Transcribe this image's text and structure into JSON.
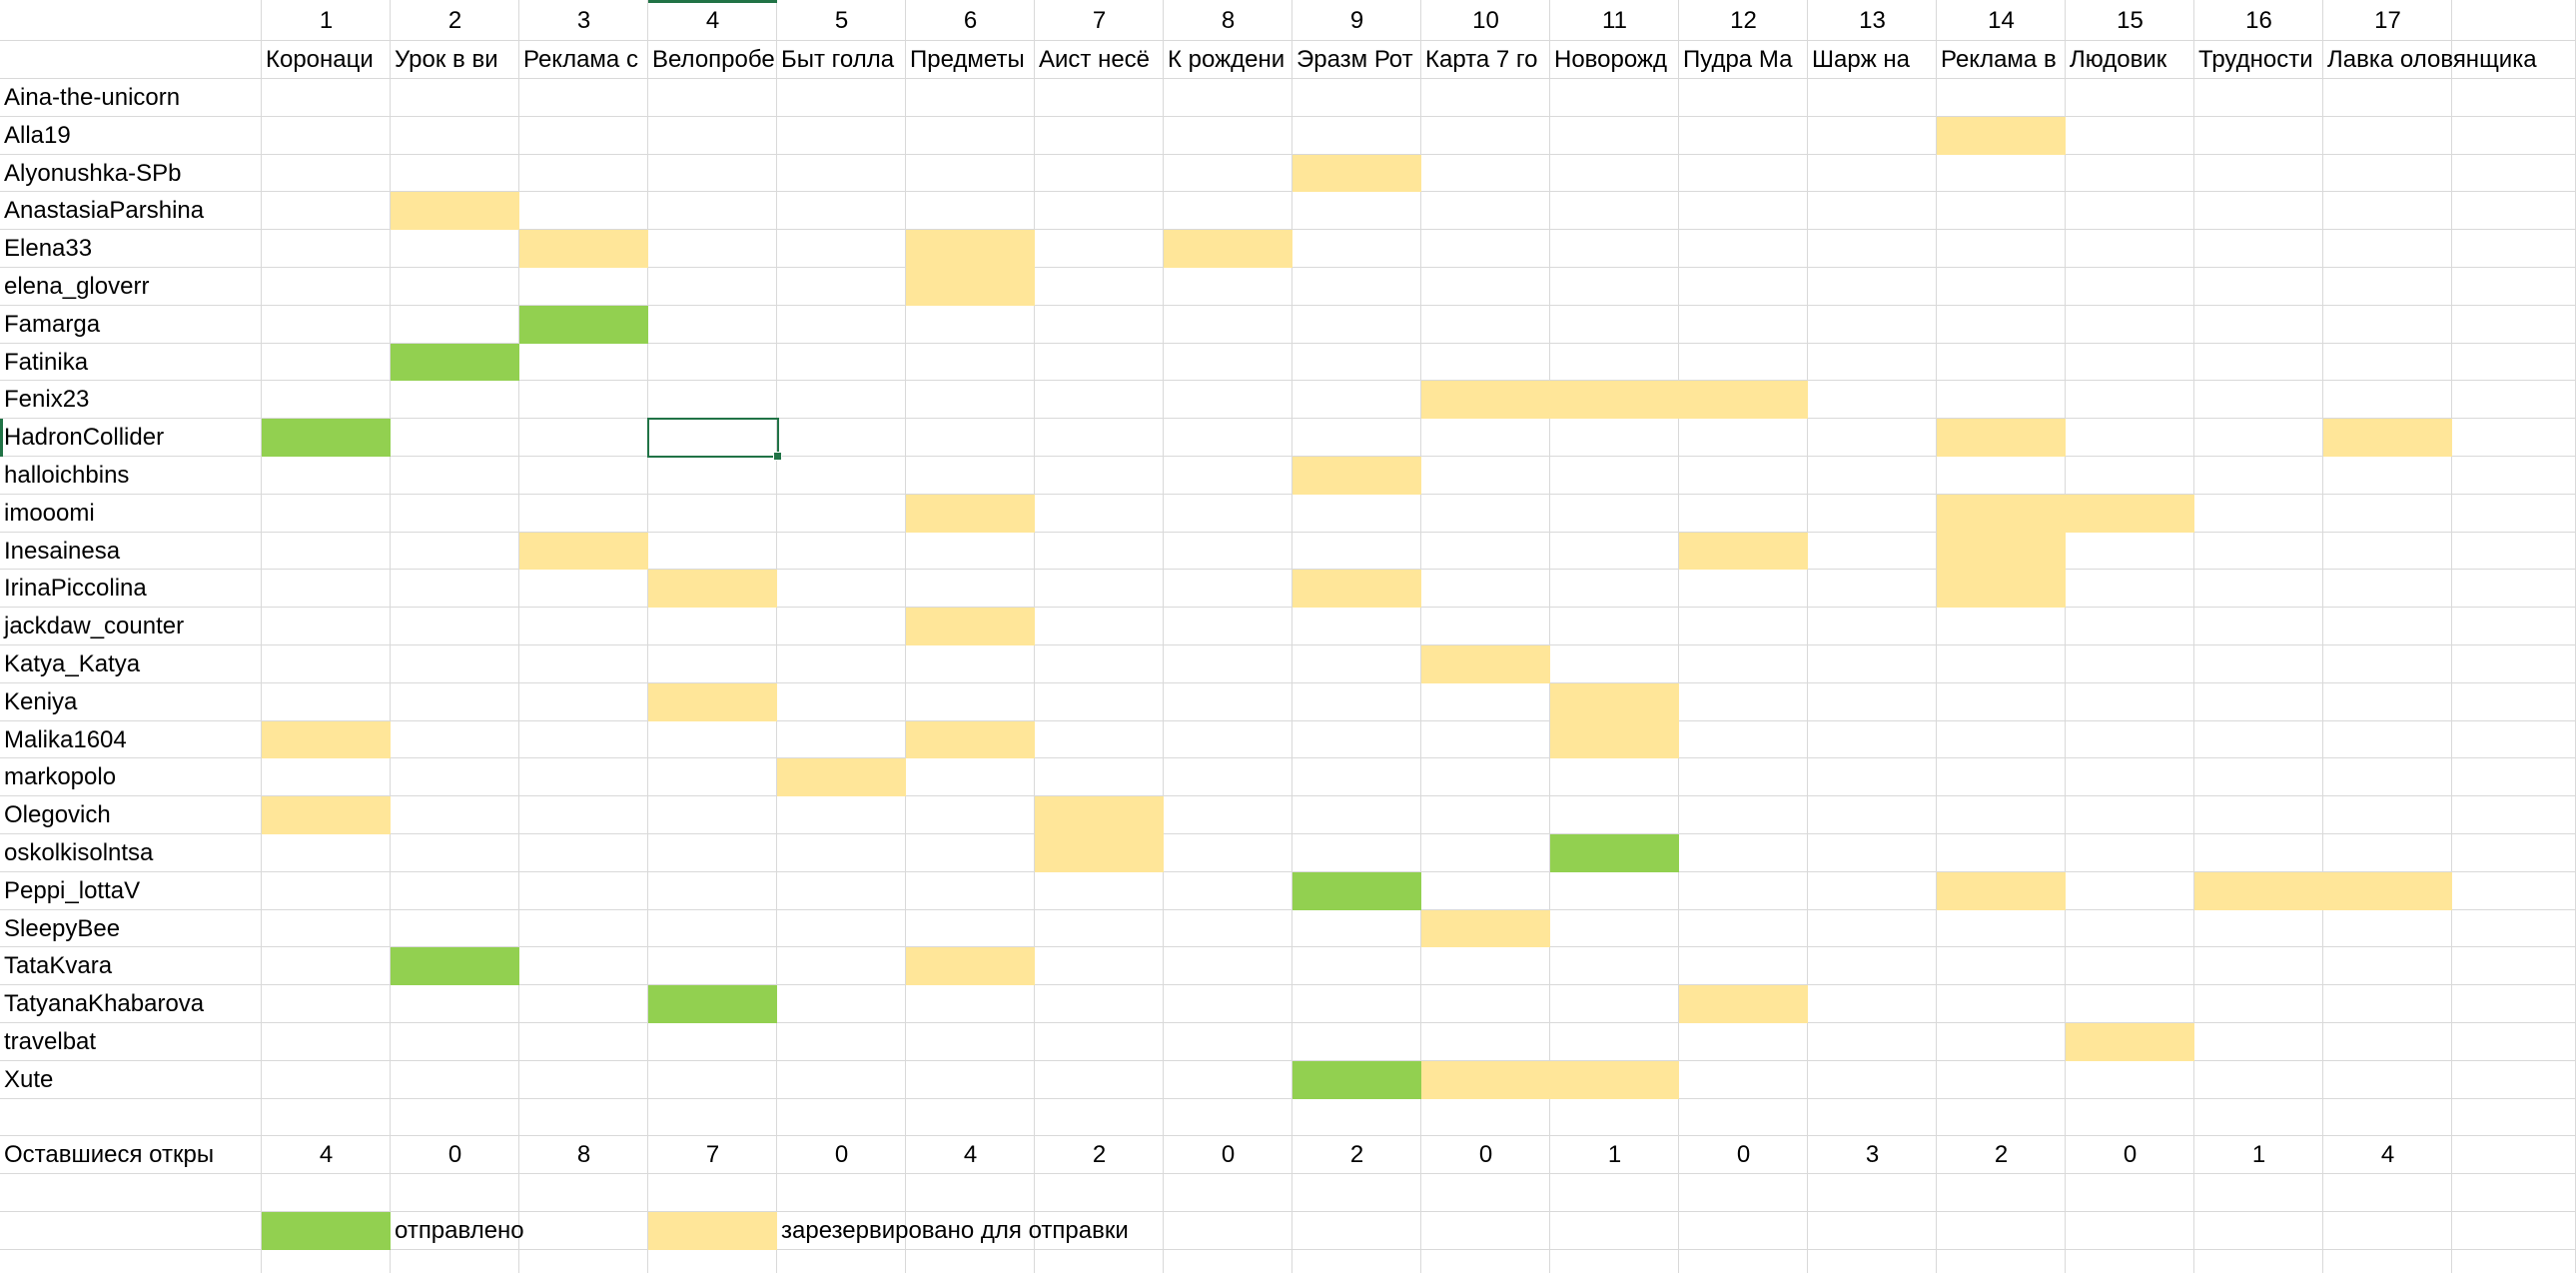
{
  "columns": {
    "numbers": [
      1,
      2,
      3,
      4,
      5,
      6,
      7,
      8,
      9,
      10,
      11,
      12,
      13,
      14,
      15,
      16,
      17
    ],
    "titles": [
      "Коронаци",
      "Урок в ви",
      "Реклама с",
      "Велопробе",
      "Быт голла",
      "Предметы",
      "Аист несё",
      "К рождени",
      "Эразм Рот",
      "Карта 7 го",
      "Новорожд",
      "Пудра Ма",
      "Шарж на",
      "Реклама в",
      "Людовик",
      "Трудности",
      "Лавка оловянщика"
    ]
  },
  "rows": [
    {
      "name": "Aina-the-unicorn",
      "fills": [
        null,
        null,
        null,
        null,
        null,
        null,
        null,
        null,
        null,
        null,
        null,
        null,
        null,
        null,
        null,
        null,
        null
      ]
    },
    {
      "name": "Alla19",
      "fills": [
        null,
        null,
        null,
        null,
        null,
        null,
        null,
        null,
        null,
        null,
        null,
        null,
        null,
        "#ffe699",
        null,
        null,
        null
      ]
    },
    {
      "name": "Alyonushka-SPb",
      "fills": [
        null,
        null,
        null,
        null,
        null,
        null,
        null,
        null,
        "#ffe699",
        null,
        null,
        null,
        null,
        null,
        null,
        null,
        null
      ]
    },
    {
      "name": "AnastasiaParshina",
      "fills": [
        null,
        "#ffe699",
        null,
        null,
        null,
        null,
        null,
        null,
        null,
        null,
        null,
        null,
        null,
        null,
        null,
        null,
        null
      ]
    },
    {
      "name": "Elena33",
      "fills": [
        null,
        null,
        "#ffe699",
        null,
        null,
        "#ffe699",
        null,
        "#ffe699",
        null,
        null,
        null,
        null,
        null,
        null,
        null,
        null,
        null
      ]
    },
    {
      "name": "elena_gloverr",
      "fills": [
        null,
        null,
        null,
        null,
        null,
        "#ffe699",
        null,
        null,
        null,
        null,
        null,
        null,
        null,
        null,
        null,
        null,
        null
      ]
    },
    {
      "name": "Famarga",
      "fills": [
        null,
        null,
        "#92d050",
        null,
        null,
        null,
        null,
        null,
        null,
        null,
        null,
        null,
        null,
        null,
        null,
        null,
        null
      ]
    },
    {
      "name": "Fatinika",
      "fills": [
        null,
        "#92d050",
        null,
        null,
        null,
        null,
        null,
        null,
        null,
        null,
        null,
        null,
        null,
        null,
        null,
        null,
        null
      ]
    },
    {
      "name": "Fenix23",
      "fills": [
        null,
        null,
        null,
        null,
        null,
        null,
        null,
        null,
        null,
        "#ffe699",
        "#ffe699",
        "#ffe699",
        null,
        null,
        null,
        null,
        null
      ]
    },
    {
      "name": "HadronCollider",
      "fills": [
        "#92d050",
        null,
        null,
        null,
        null,
        null,
        null,
        null,
        null,
        null,
        null,
        null,
        null,
        "#ffe699",
        null,
        null,
        "#ffe699"
      ]
    },
    {
      "name": "halloichbins",
      "fills": [
        null,
        null,
        null,
        null,
        null,
        null,
        null,
        null,
        "#ffe699",
        null,
        null,
        null,
        null,
        null,
        null,
        null,
        null
      ]
    },
    {
      "name": "imooomi",
      "fills": [
        null,
        null,
        null,
        null,
        null,
        "#ffe699",
        null,
        null,
        null,
        null,
        null,
        null,
        null,
        "#ffe699",
        "#ffe699",
        null,
        null
      ]
    },
    {
      "name": "Inesainesa",
      "fills": [
        null,
        null,
        "#ffe699",
        null,
        null,
        null,
        null,
        null,
        null,
        null,
        null,
        "#ffe699",
        null,
        "#ffe699",
        null,
        null,
        null
      ]
    },
    {
      "name": "IrinaPiccolina",
      "fills": [
        null,
        null,
        null,
        "#ffe699",
        null,
        null,
        null,
        null,
        "#ffe699",
        null,
        null,
        null,
        null,
        "#ffe699",
        null,
        null,
        null
      ]
    },
    {
      "name": "jackdaw_counter",
      "fills": [
        null,
        null,
        null,
        null,
        null,
        "#ffe699",
        null,
        null,
        null,
        null,
        null,
        null,
        null,
        null,
        null,
        null,
        null
      ]
    },
    {
      "name": "Katya_Katya",
      "fills": [
        null,
        null,
        null,
        null,
        null,
        null,
        null,
        null,
        null,
        "#ffe699",
        null,
        null,
        null,
        null,
        null,
        null,
        null
      ]
    },
    {
      "name": "Keniya",
      "fills": [
        null,
        null,
        null,
        "#ffe699",
        null,
        null,
        null,
        null,
        null,
        null,
        "#ffe699",
        null,
        null,
        null,
        null,
        null,
        null
      ]
    },
    {
      "name": "Malika1604",
      "fills": [
        "#ffe699",
        null,
        null,
        null,
        null,
        "#ffe699",
        null,
        null,
        null,
        null,
        "#ffe699",
        null,
        null,
        null,
        null,
        null,
        null
      ]
    },
    {
      "name": "markopolo",
      "fills": [
        null,
        null,
        null,
        null,
        "#ffe699",
        null,
        null,
        null,
        null,
        null,
        null,
        null,
        null,
        null,
        null,
        null,
        null
      ]
    },
    {
      "name": "Olegovich",
      "fills": [
        "#ffe699",
        null,
        null,
        null,
        null,
        null,
        "#ffe699",
        null,
        null,
        null,
        null,
        null,
        null,
        null,
        null,
        null,
        null
      ]
    },
    {
      "name": "oskolkisolntsa",
      "fills": [
        null,
        null,
        null,
        null,
        null,
        null,
        "#ffe699",
        null,
        null,
        null,
        "#92d050",
        null,
        null,
        null,
        null,
        null,
        null
      ]
    },
    {
      "name": "Peppi_lottaV",
      "fills": [
        null,
        null,
        null,
        null,
        null,
        null,
        null,
        null,
        "#92d050",
        null,
        null,
        null,
        null,
        "#ffe699",
        null,
        "#ffe699",
        "#ffe699"
      ]
    },
    {
      "name": "SleepyBee",
      "fills": [
        null,
        null,
        null,
        null,
        null,
        null,
        null,
        null,
        null,
        "#ffe699",
        null,
        null,
        null,
        null,
        null,
        null,
        null
      ]
    },
    {
      "name": "TataKvara",
      "fills": [
        null,
        "#92d050",
        null,
        null,
        null,
        "#ffe699",
        null,
        null,
        null,
        null,
        null,
        null,
        null,
        null,
        null,
        null,
        null
      ]
    },
    {
      "name": "TatyanaKhabarova",
      "fills": [
        null,
        null,
        null,
        "#92d050",
        null,
        null,
        null,
        null,
        null,
        null,
        null,
        "#ffe699",
        null,
        null,
        null,
        null,
        null
      ]
    },
    {
      "name": "travelbat",
      "fills": [
        null,
        null,
        null,
        null,
        null,
        null,
        null,
        null,
        null,
        null,
        null,
        null,
        null,
        null,
        "#ffe699",
        null,
        null
      ]
    },
    {
      "name": "Xute",
      "fills": [
        null,
        null,
        null,
        null,
        null,
        null,
        null,
        null,
        "#92d050",
        "#ffe699",
        "#ffe699",
        null,
        null,
        null,
        null,
        null,
        null
      ]
    }
  ],
  "summary": {
    "label": "Оставшиеся откры",
    "values": [
      4,
      0,
      8,
      7,
      0,
      4,
      2,
      0,
      2,
      0,
      1,
      0,
      3,
      2,
      0,
      1,
      4
    ]
  },
  "legend": [
    {
      "color": "#92d050",
      "label": "отправлено"
    },
    {
      "color": "#ffe699",
      "label": "зарезервировано для отправки"
    }
  ]
}
